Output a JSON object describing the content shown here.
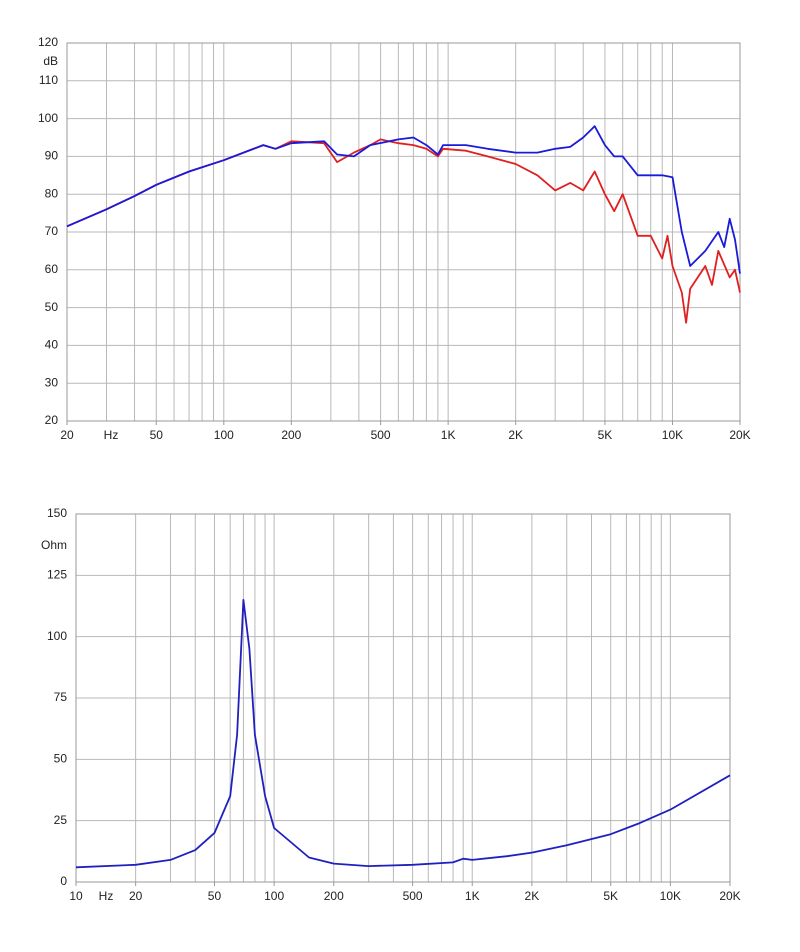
{
  "chart_data": [
    {
      "type": "line",
      "xscale": "log",
      "ylabel": "dB",
      "xlabel": "Hz",
      "xlim": [
        20,
        20000
      ],
      "ylim": [
        20,
        120
      ],
      "xticks": [
        20,
        50,
        100,
        200,
        500,
        {
          "value": 1000,
          "label": "1K"
        },
        {
          "value": 2000,
          "label": "2K"
        },
        {
          "value": 5000,
          "label": "5K"
        },
        {
          "value": 10000,
          "label": "10K"
        },
        {
          "value": 20000,
          "label": "20K"
        }
      ],
      "xgrid": [
        30,
        40,
        50,
        60,
        70,
        80,
        90,
        100,
        200,
        300,
        400,
        500,
        600,
        700,
        800,
        900,
        1000,
        2000,
        3000,
        4000,
        5000,
        6000,
        7000,
        8000,
        9000,
        10000
      ],
      "yticks": [
        20,
        30,
        40,
        50,
        60,
        70,
        80,
        90,
        100,
        110,
        120
      ],
      "series": [
        {
          "color": "#e02020",
          "x": [
            20,
            30,
            40,
            50,
            70,
            100,
            150,
            170,
            200,
            280,
            320,
            380,
            450,
            500,
            600,
            700,
            800,
            900,
            950,
            1200,
            1500,
            2000,
            2500,
            3000,
            3500,
            4000,
            4500,
            5000,
            5500,
            6000,
            7000,
            8000,
            9000,
            9500,
            10000,
            11000,
            11500,
            12000,
            14000,
            15000,
            16000,
            18000,
            19000,
            20000
          ],
          "values": [
            71.5,
            76,
            79.5,
            82.5,
            86,
            89,
            93,
            92,
            94,
            93.5,
            88.5,
            91,
            93,
            94.5,
            93.5,
            93,
            92,
            90,
            92,
            91.5,
            90,
            88,
            85,
            81,
            83,
            81,
            86,
            80,
            75.5,
            80,
            69,
            69,
            63,
            69,
            61,
            54,
            46,
            55,
            61,
            56,
            65,
            58,
            60,
            54
          ]
        },
        {
          "color": "#1a1adb",
          "x": [
            20,
            30,
            40,
            50,
            70,
            100,
            150,
            170,
            200,
            280,
            320,
            380,
            450,
            600,
            700,
            800,
            900,
            950,
            1200,
            1500,
            2000,
            2500,
            3000,
            3500,
            4000,
            4500,
            5000,
            5500,
            6000,
            7000,
            9000,
            10000,
            11000,
            12000,
            14000,
            16000,
            17000,
            18000,
            19000,
            20000
          ],
          "values": [
            71.5,
            76,
            79.5,
            82.5,
            86,
            89,
            93,
            92,
            93.5,
            94,
            90.5,
            90,
            93,
            94.5,
            95,
            93,
            90.5,
            93,
            93,
            92,
            91,
            91,
            92,
            92.5,
            95,
            98,
            93,
            90,
            90,
            85,
            85,
            84.5,
            70,
            61,
            65,
            70,
            66,
            73.5,
            68,
            59
          ]
        }
      ]
    },
    {
      "type": "line",
      "xscale": "log",
      "ylabel": "Ohm",
      "xlabel": "Hz",
      "xlim": [
        10,
        20000
      ],
      "ylim": [
        0,
        150
      ],
      "xticks": [
        10,
        20,
        50,
        100,
        200,
        500,
        {
          "value": 1000,
          "label": "1K"
        },
        {
          "value": 2000,
          "label": "2K"
        },
        {
          "value": 5000,
          "label": "5K"
        },
        {
          "value": 10000,
          "label": "10K"
        },
        {
          "value": 20000,
          "label": "20K"
        }
      ],
      "xgrid": [
        20,
        30,
        40,
        50,
        60,
        70,
        80,
        90,
        100,
        200,
        300,
        400,
        500,
        600,
        700,
        800,
        900,
        1000,
        2000,
        3000,
        4000,
        5000,
        6000,
        7000,
        8000,
        9000,
        10000
      ],
      "yticks": [
        0,
        25,
        50,
        75,
        100,
        125,
        150
      ],
      "series": [
        {
          "color": "#2020c0",
          "x": [
            10,
            20,
            30,
            40,
            50,
            60,
            65,
            70,
            75,
            80,
            90,
            100,
            150,
            200,
            300,
            500,
            800,
            900,
            1000,
            1500,
            2000,
            3000,
            5000,
            7000,
            10000,
            20000
          ],
          "values": [
            6,
            7,
            9,
            13,
            20,
            35,
            60,
            115,
            95,
            60,
            35,
            22,
            10,
            7.5,
            6.5,
            7,
            8,
            9.5,
            9,
            10.5,
            12,
            15,
            19.5,
            24,
            29.5,
            43.5
          ]
        }
      ]
    }
  ]
}
